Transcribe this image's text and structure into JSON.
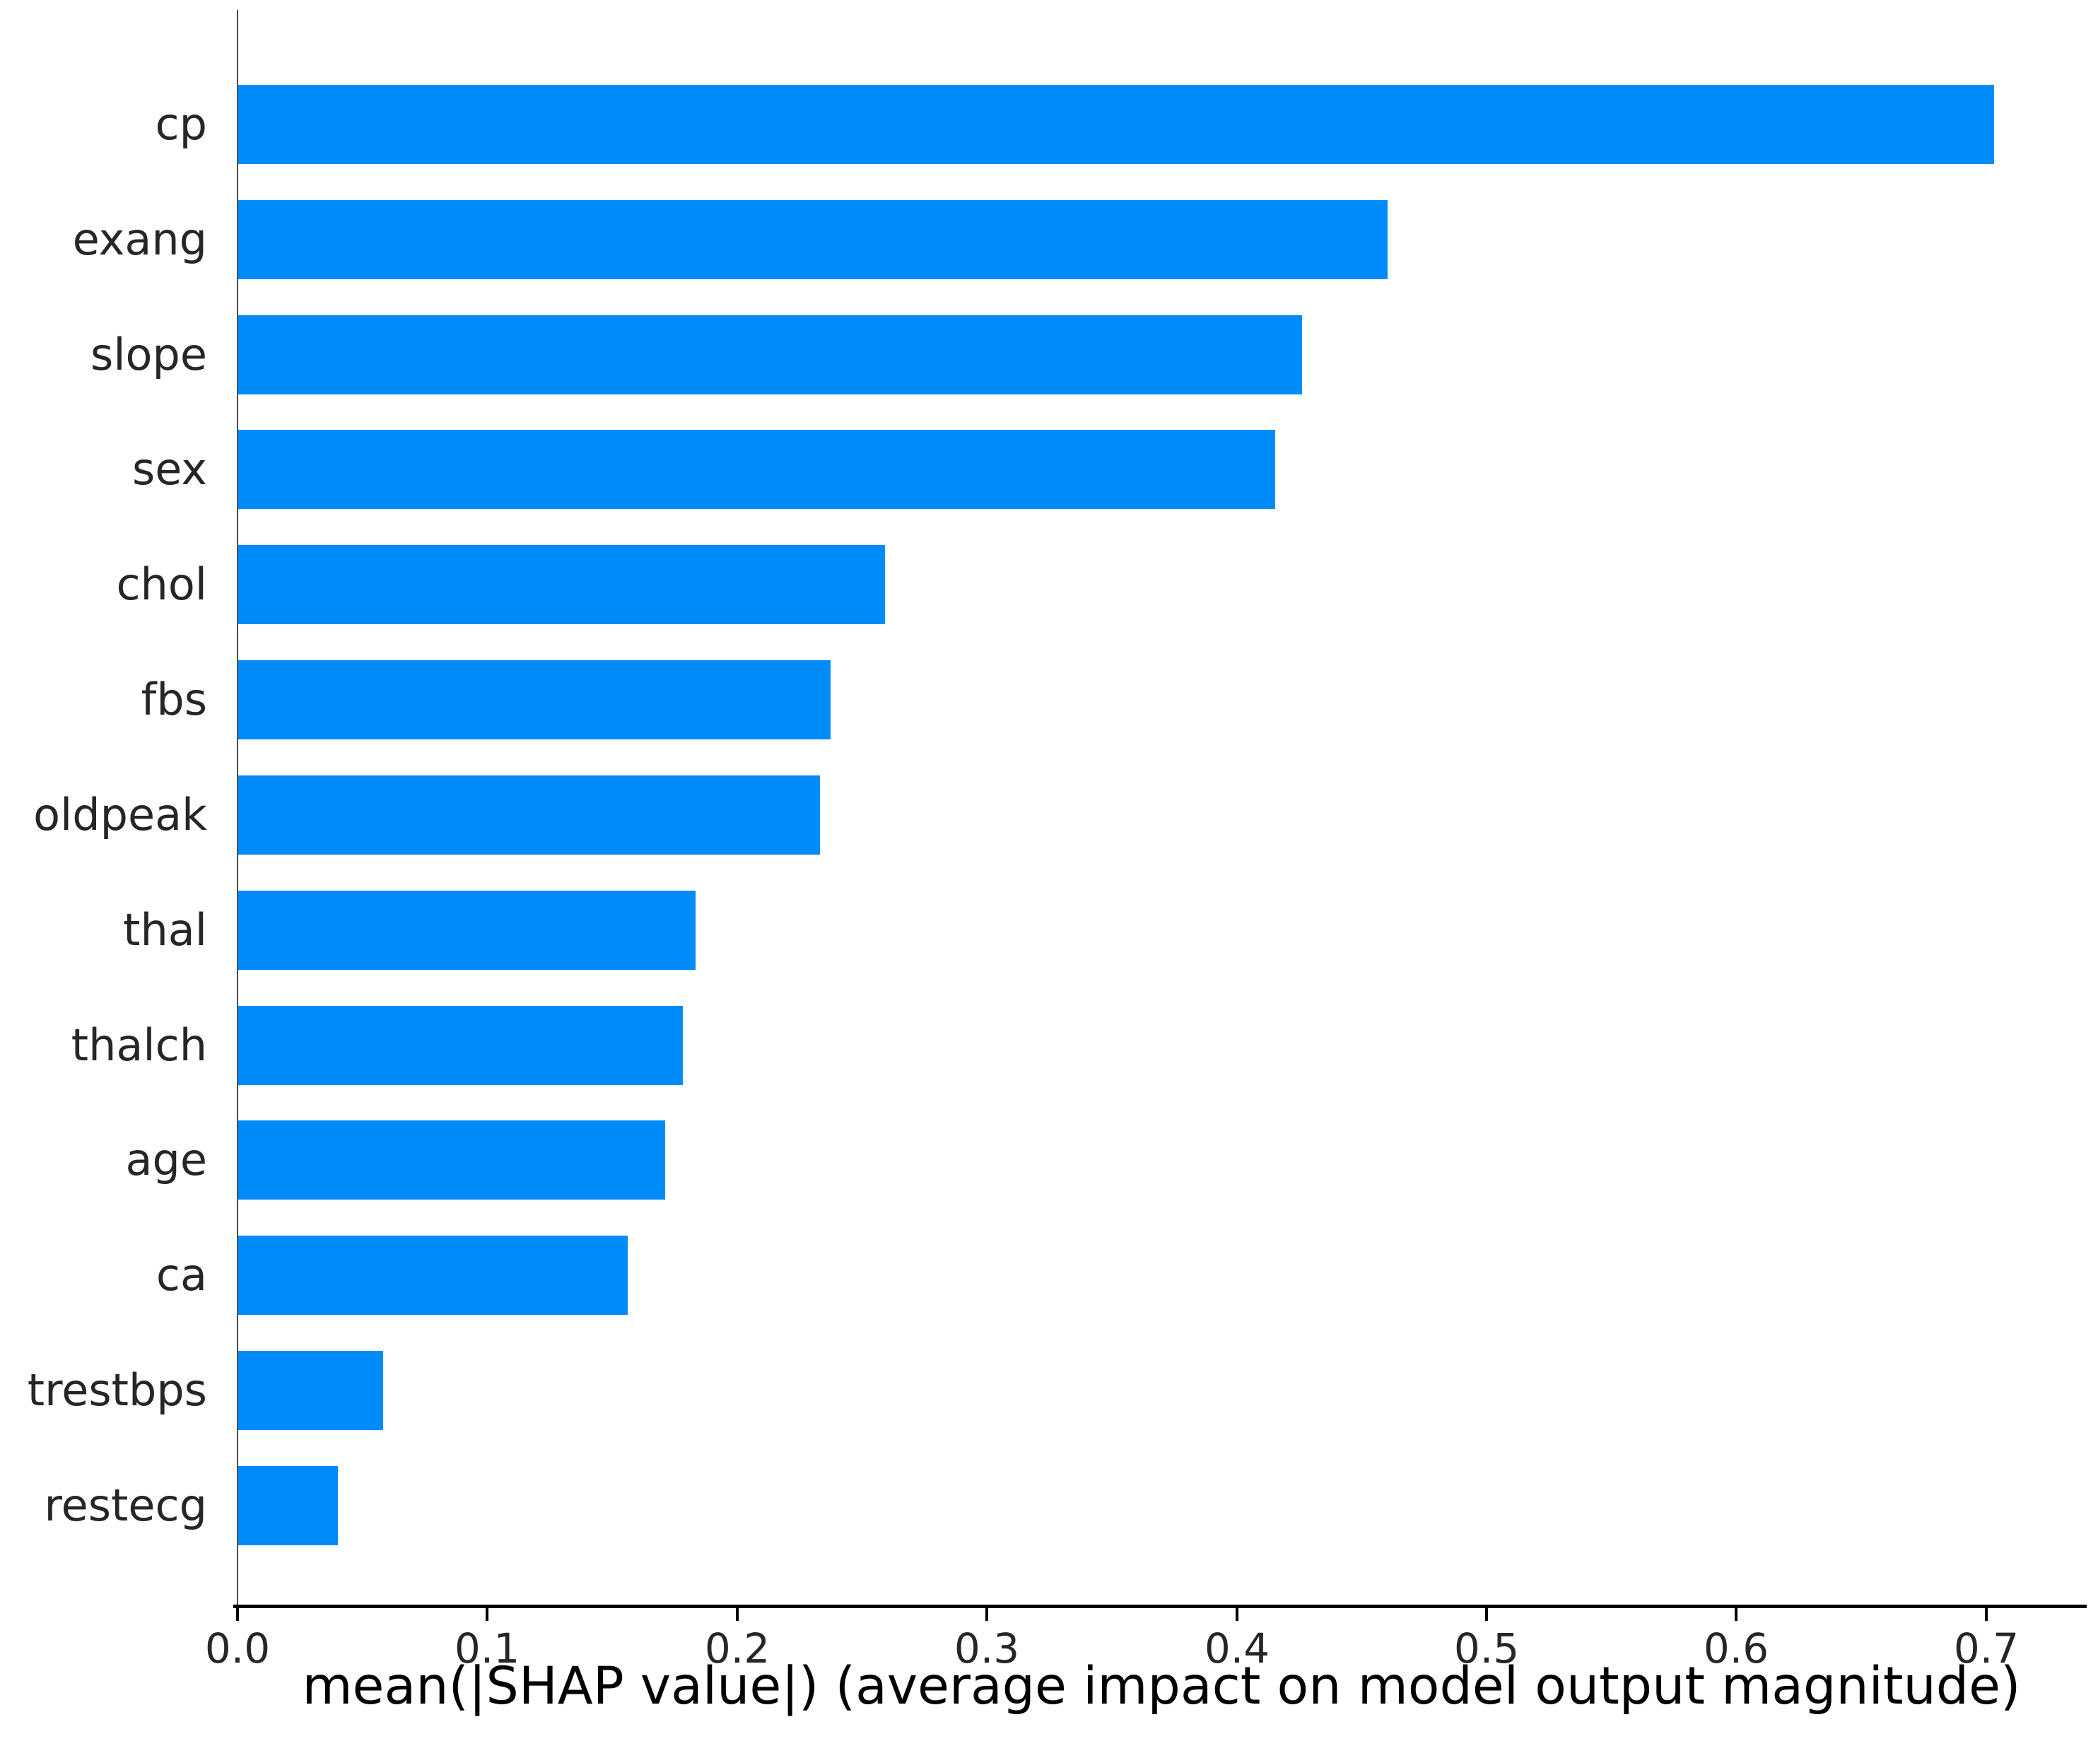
{
  "chart_data": {
    "type": "bar",
    "orientation": "horizontal",
    "title": "",
    "categories": [
      "cp",
      "exang",
      "slope",
      "sex",
      "chol",
      "fbs",
      "oldpeak",
      "thal",
      "thalch",
      "age",
      "ca",
      "trestbps",
      "restecg"
    ],
    "values": [
      0.703,
      0.46,
      0.426,
      0.415,
      0.259,
      0.237,
      0.233,
      0.183,
      0.178,
      0.171,
      0.156,
      0.058,
      0.04
    ],
    "xlabel": "mean(|SHAP value|) (average impact on model output magnitude)",
    "ylabel": "",
    "xlim": [
      0.0,
      0.74
    ],
    "xticks": [
      0.0,
      0.1,
      0.2,
      0.3,
      0.4,
      0.5,
      0.6,
      0.7
    ],
    "xtick_labels": [
      "0.0",
      "0.1",
      "0.2",
      "0.3",
      "0.4",
      "0.5",
      "0.6",
      "0.7"
    ],
    "grid": false,
    "legend": null,
    "colors": {
      "bar": "#008bfb",
      "left_spine": "#4d4d4d",
      "bottom_spine": "#000000",
      "tick_text": "#262626",
      "label_text": "#262626",
      "background": "#ffffff"
    }
  }
}
